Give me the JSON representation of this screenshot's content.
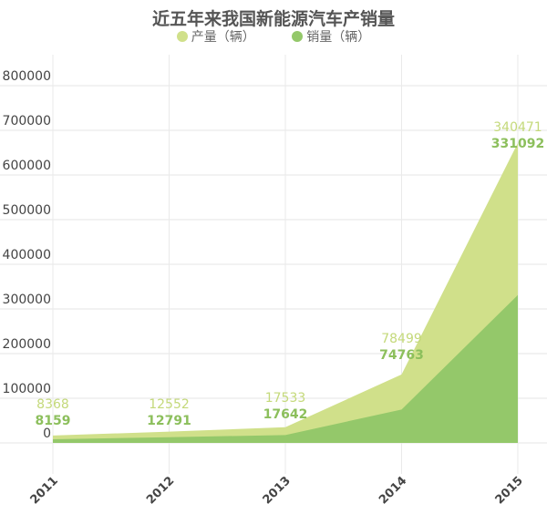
{
  "chart_data": {
    "type": "area",
    "stacked": true,
    "title": "近五年来我国新能源汽车产销量",
    "categories": [
      "2011",
      "2012",
      "2013",
      "2014",
      "2015"
    ],
    "series": [
      {
        "name": "销量（辆）",
        "values": [
          8159,
          12791,
          17642,
          74763,
          331092
        ],
        "color": "#94c86a"
      },
      {
        "name": "产量（辆）",
        "values": [
          8368,
          12552,
          17533,
          78499,
          340471
        ],
        "color": "#d0e08a"
      }
    ],
    "yticks": [
      "0",
      "100000",
      "200000",
      "300000",
      "400000",
      "500000",
      "600000",
      "700000",
      "800000"
    ],
    "ylim": [
      0,
      800000
    ],
    "grid": true,
    "legend": "top"
  }
}
